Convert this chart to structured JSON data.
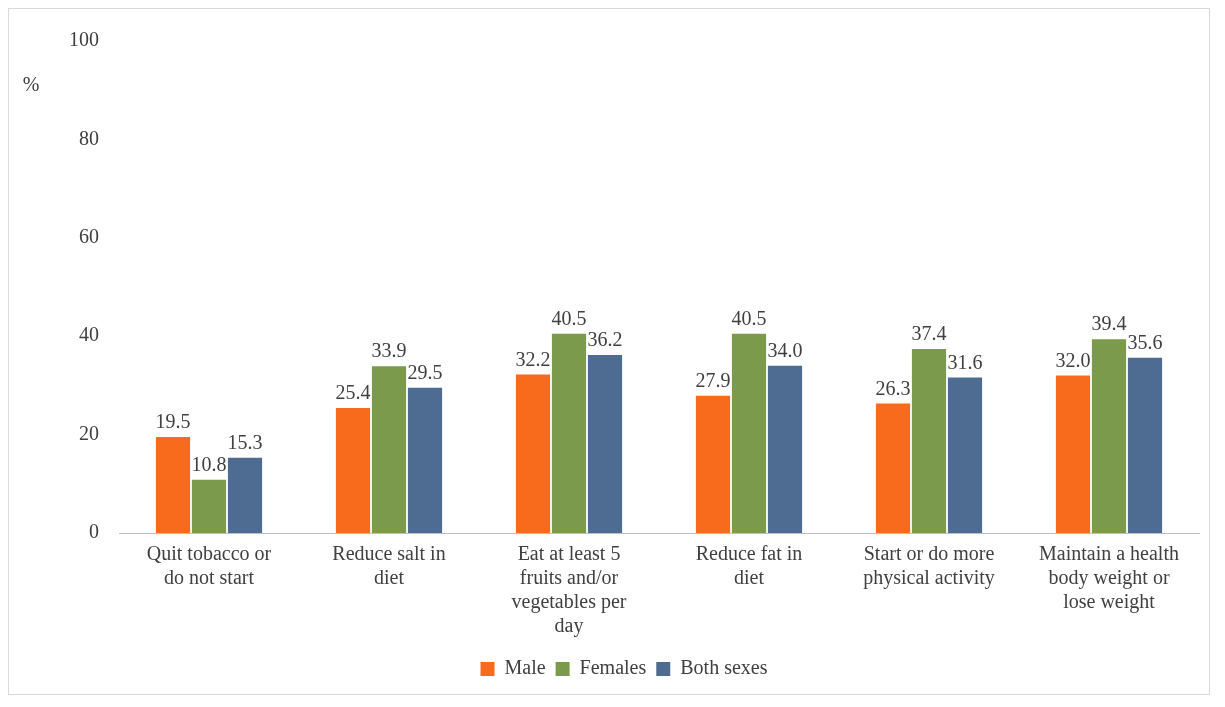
{
  "chart_data": {
    "type": "bar",
    "ylabel": "%",
    "categories": [
      "Quit tobacco or do not start",
      "Reduce salt in diet",
      "Eat at least 5 fruits and/or vegetables per day",
      "Reduce fat in diet",
      "Start or do more physical activity",
      "Maintain a health body weight or lose weight"
    ],
    "series": [
      {
        "name": "Male",
        "color": "#f96b1c",
        "values": [
          19.5,
          25.4,
          32.2,
          27.9,
          26.3,
          32.0
        ],
        "value_labels": [
          "19.5",
          "25.4",
          "32.2",
          "27.9",
          "26.3",
          "32.0"
        ]
      },
      {
        "name": "Females",
        "color": "#7b9a4b",
        "values": [
          10.8,
          33.9,
          40.5,
          40.5,
          37.4,
          39.4
        ],
        "value_labels": [
          "10.8",
          "33.9",
          "40.5",
          "40.5",
          "37.4",
          "39.4"
        ]
      },
      {
        "name": "Both sexes",
        "color": "#4e6c91",
        "values": [
          15.3,
          29.5,
          36.2,
          34.0,
          31.6,
          35.6
        ],
        "value_labels": [
          "15.3",
          "29.5",
          "36.2",
          "34.0",
          "31.6",
          "35.6"
        ]
      }
    ],
    "ylim": [
      0,
      100
    ],
    "yticks": [
      0,
      20,
      40,
      60,
      80,
      100
    ],
    "grid": false,
    "legend": "bottom"
  }
}
